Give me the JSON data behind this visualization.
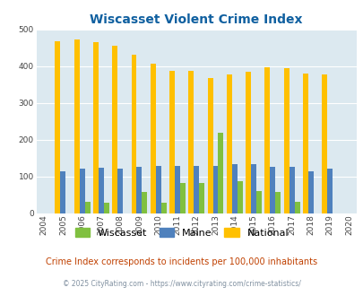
{
  "title": "Wiscasset Violent Crime Index",
  "years": [
    2004,
    2005,
    2006,
    2007,
    2008,
    2009,
    2010,
    2011,
    2012,
    2013,
    2014,
    2015,
    2016,
    2017,
    2018,
    2019,
    2020
  ],
  "wiscasset": [
    0,
    0,
    30,
    28,
    0,
    57,
    29,
    82,
    82,
    220,
    87,
    60,
    58,
    30,
    0,
    0,
    0
  ],
  "maine": [
    0,
    115,
    120,
    124,
    120,
    125,
    128,
    128,
    128,
    128,
    133,
    133,
    127,
    127,
    115,
    120,
    0
  ],
  "national": [
    0,
    469,
    474,
    467,
    455,
    432,
    406,
    387,
    387,
    368,
    378,
    384,
    398,
    394,
    381,
    379,
    0
  ],
  "wiscasset_color": "#80c040",
  "maine_color": "#4f81bd",
  "national_color": "#ffc000",
  "bg_color": "#dce9f0",
  "plot_bg": "#dce9f0",
  "title_color": "#1060a0",
  "subtitle_color": "#c04000",
  "footer_color": "#8090a0",
  "ylim": [
    0,
    500
  ],
  "yticks": [
    0,
    100,
    200,
    300,
    400,
    500
  ],
  "subtitle": "Crime Index corresponds to incidents per 100,000 inhabitants",
  "footer": "© 2025 CityRating.com - https://www.cityrating.com/crime-statistics/"
}
